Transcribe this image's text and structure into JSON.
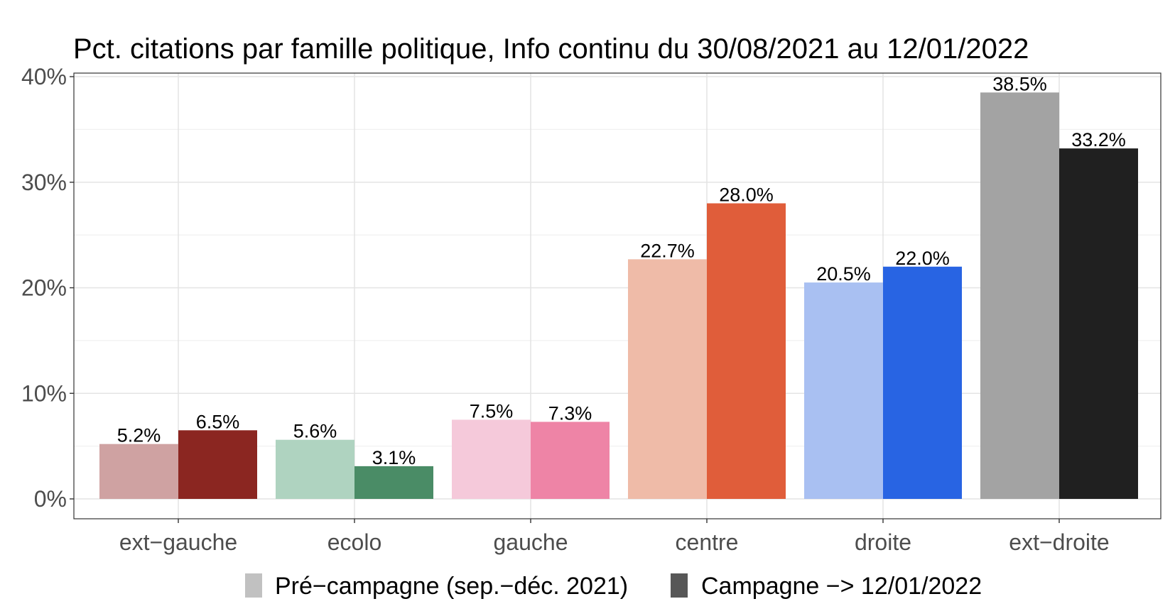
{
  "chart_data": {
    "type": "bar",
    "title": "Pct. citations par famille politique, Info continu du 30/08/2021 au 12/01/2022",
    "xlabel": "",
    "ylabel": "",
    "ylim": [
      0,
      40
    ],
    "y_ticks": [
      "0%",
      "10%",
      "20%",
      "30%",
      "40%"
    ],
    "y_tick_values": [
      0,
      10,
      20,
      30,
      40
    ],
    "categories": [
      "ext−gauche",
      "ecolo",
      "gauche",
      "centre",
      "droite",
      "ext−droite"
    ],
    "series": [
      {
        "name": "Pré−campagne (sep.−déc. 2021)",
        "values": [
          5.2,
          5.6,
          7.5,
          22.7,
          20.5,
          38.5
        ],
        "labels": [
          "5.2%",
          "5.6%",
          "7.5%",
          "22.7%",
          "20.5%",
          "38.5%"
        ],
        "colors": [
          "#cfa2a2",
          "#afd3c0",
          "#f5c9da",
          "#efbba8",
          "#a9c0f2",
          "#a3a3a3"
        ]
      },
      {
        "name": "Campagne −> 12/01/2022",
        "values": [
          6.5,
          3.1,
          7.3,
          28.0,
          22.0,
          33.2
        ],
        "labels": [
          "6.5%",
          "3.1%",
          "7.3%",
          "28.0%",
          "22.0%",
          "33.2%"
        ],
        "colors": [
          "#8b2621",
          "#4a8c66",
          "#ee84a6",
          "#e05d3a",
          "#2864e3",
          "#202020"
        ]
      }
    ],
    "grid": true,
    "legend_position": "bottom",
    "legend_colors": [
      "#c1c1c1",
      "#575757"
    ]
  }
}
